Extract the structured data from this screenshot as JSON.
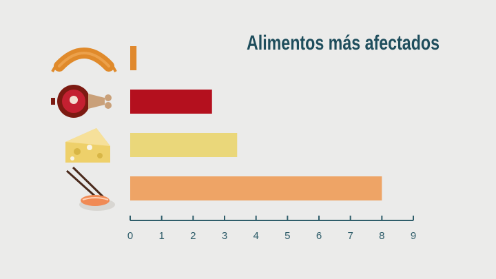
{
  "chart_data": {
    "type": "bar",
    "orientation": "horizontal",
    "title": "Alimentos más afectados",
    "categories": [
      "sausage-icon",
      "ham-icon",
      "cheese-icon",
      "sushi-icon"
    ],
    "values": [
      0.2,
      2.6,
      3.4,
      8.0
    ],
    "bar_colors": [
      "#e0892e",
      "#b4101e",
      "#ead77a",
      "#eea466"
    ],
    "xlim": [
      0,
      9
    ],
    "x_ticks": [
      "0",
      "1",
      "2",
      "3",
      "4",
      "5",
      "6",
      "7",
      "8",
      "9"
    ],
    "grid": false,
    "xlabel": "",
    "ylabel": ""
  },
  "colors": {
    "background": "#ebebea",
    "axis": "#2f5d6a",
    "title": "#1e4d5c"
  }
}
